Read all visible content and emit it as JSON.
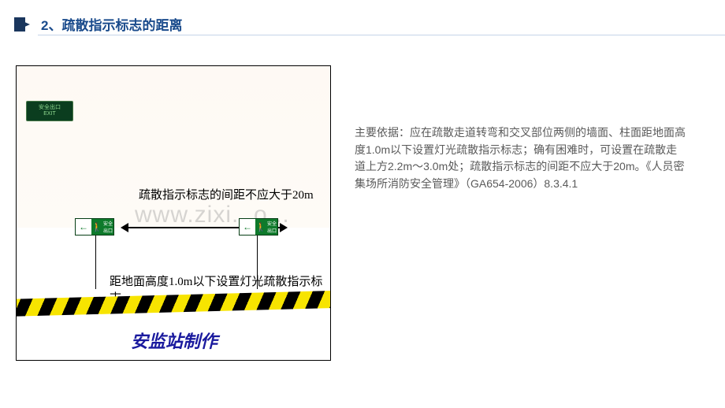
{
  "header": {
    "title": "2、疏散指示标志的距离"
  },
  "diagram": {
    "exit_sign": {
      "line1": "安全出口",
      "line2": "EXIT"
    },
    "label_top": "疏散指示标志的间距不应大于20m",
    "label_mid": "距地面高度1.0m以下设置灯光疏散指示标志",
    "watermark": "www.zixi...o...",
    "bottom_credit": "安监站制作",
    "colors": {
      "sign_green": "#0e7a2b",
      "exit_dark": "#0b3d1f",
      "stripe_yellow": "#f7e400",
      "stripe_black": "#000000",
      "bottom_text": "#1a1a9e",
      "border": "#000000",
      "bg_gradient_top": "#fef9f4",
      "bg_gradient_bottom": "#ffffff"
    }
  },
  "body_text": "主要依据：应在疏散走道转弯和交叉部位两侧的墙面、柱面距地面高度1.0m以下设置灯光疏散指示标志；确有困难时，可设置在疏散走道上方2.2m～3.0m处；疏散指示标志的间距不应大于20m。《人员密集场所消防安全管理》（GA654-2006）8.3.4.1"
}
